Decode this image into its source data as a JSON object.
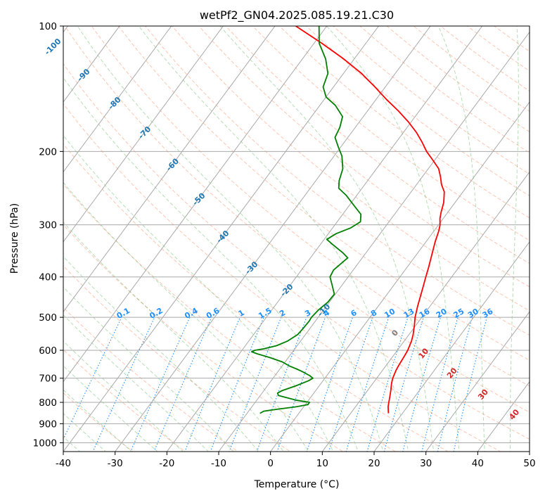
{
  "chart_data": {
    "type": "line",
    "subtype": "skew-T log-P diagram",
    "title": "wetPf2_GN04.2025.085.19.21.C30",
    "xlabel": "Temperature (°C)",
    "ylabel": "Pressure (hPa)",
    "xlim": [
      -40,
      50
    ],
    "ylim": [
      1050,
      100
    ],
    "y_scale": "log",
    "x_ticks": [
      -40,
      -30,
      -20,
      -10,
      0,
      10,
      20,
      30,
      40,
      50
    ],
    "y_ticks": [
      100,
      200,
      300,
      400,
      500,
      600,
      700,
      800,
      900,
      1000
    ],
    "grid": true,
    "series": [
      {
        "role": "temperature",
        "color": "#ff0000",
        "points": [
          [
            850,
            17.3
          ],
          [
            820,
            16.3
          ],
          [
            800,
            15.8
          ],
          [
            780,
            15.3
          ],
          [
            750,
            14.5
          ],
          [
            720,
            13.6
          ],
          [
            700,
            13.1
          ],
          [
            670,
            12.6
          ],
          [
            650,
            12.4
          ],
          [
            620,
            12.2
          ],
          [
            600,
            12.0
          ],
          [
            570,
            11.4
          ],
          [
            550,
            10.8
          ],
          [
            520,
            9.6
          ],
          [
            500,
            8.7
          ],
          [
            470,
            7.6
          ],
          [
            450,
            6.9
          ],
          [
            420,
            5.8
          ],
          [
            400,
            5.0
          ],
          [
            380,
            4.2
          ],
          [
            350,
            2.8
          ],
          [
            330,
            1.8
          ],
          [
            310,
            0.9
          ],
          [
            300,
            0.3
          ],
          [
            290,
            -0.6
          ],
          [
            280,
            -1.3
          ],
          [
            265,
            -2.2
          ],
          [
            250,
            -3.6
          ],
          [
            240,
            -5.2
          ],
          [
            230,
            -6.5
          ],
          [
            220,
            -8.0
          ],
          [
            210,
            -10.3
          ],
          [
            200,
            -12.8
          ],
          [
            190,
            -15.0
          ],
          [
            180,
            -17.5
          ],
          [
            170,
            -20.5
          ],
          [
            160,
            -24.0
          ],
          [
            150,
            -28.0
          ],
          [
            140,
            -32.0
          ],
          [
            130,
            -36.5
          ],
          [
            120,
            -42.0
          ],
          [
            110,
            -48.5
          ],
          [
            100,
            -56.0
          ]
        ]
      },
      {
        "role": "dewpoint",
        "color": "#008000",
        "points": [
          [
            850,
            -7.5
          ],
          [
            840,
            -7.1
          ],
          [
            830,
            -4.5
          ],
          [
            820,
            -1.5
          ],
          [
            810,
            0.5
          ],
          [
            800,
            0.5
          ],
          [
            790,
            -2.5
          ],
          [
            780,
            -4.5
          ],
          [
            770,
            -6.5
          ],
          [
            760,
            -7.0
          ],
          [
            750,
            -6.5
          ],
          [
            730,
            -4.5
          ],
          [
            710,
            -2.8
          ],
          [
            700,
            -2.3
          ],
          [
            690,
            -3.3
          ],
          [
            675,
            -5.3
          ],
          [
            665,
            -6.8
          ],
          [
            655,
            -8.5
          ],
          [
            640,
            -10.5
          ],
          [
            625,
            -13.5
          ],
          [
            612,
            -16.5
          ],
          [
            605,
            -17.9
          ],
          [
            600,
            -17.5
          ],
          [
            595,
            -16.0
          ],
          [
            585,
            -14.0
          ],
          [
            570,
            -12.5
          ],
          [
            550,
            -11.5
          ],
          [
            530,
            -11.3
          ],
          [
            510,
            -11.2
          ],
          [
            500,
            -11.3
          ],
          [
            480,
            -11.0
          ],
          [
            460,
            -10.3
          ],
          [
            440,
            -10.2
          ],
          [
            420,
            -11.8
          ],
          [
            400,
            -13.5
          ],
          [
            385,
            -13.8
          ],
          [
            370,
            -13.2
          ],
          [
            360,
            -12.8
          ],
          [
            350,
            -14.5
          ],
          [
            335,
            -17.5
          ],
          [
            325,
            -19.5
          ],
          [
            315,
            -18.5
          ],
          [
            305,
            -16.5
          ],
          [
            295,
            -15.5
          ],
          [
            283,
            -16.5
          ],
          [
            270,
            -19.0
          ],
          [
            255,
            -22.0
          ],
          [
            245,
            -24.5
          ],
          [
            235,
            -25.5
          ],
          [
            220,
            -26.5
          ],
          [
            205,
            -28.5
          ],
          [
            195,
            -30.5
          ],
          [
            185,
            -32.5
          ],
          [
            175,
            -33.0
          ],
          [
            165,
            -34.0
          ],
          [
            155,
            -37.0
          ],
          [
            148,
            -40.0
          ],
          [
            140,
            -42.0
          ],
          [
            130,
            -43.0
          ],
          [
            120,
            -45.5
          ],
          [
            110,
            -49.0
          ],
          [
            100,
            -51.5
          ]
        ]
      }
    ],
    "isotherm_labels": [
      -100,
      -90,
      -80,
      -70,
      -60,
      -50,
      -40,
      -30,
      -20,
      -10
    ],
    "wet_bulb_labels": [
      0,
      10,
      20,
      30,
      40
    ],
    "mixing_ratio_labels": [
      "0.1",
      "0.2",
      "0.4",
      "0.6",
      "1",
      "1.5",
      "2",
      "3",
      "4",
      "6",
      "8",
      "10",
      "13",
      "16",
      "20",
      "25",
      "30",
      "36"
    ],
    "mixing_ratio_values": [
      0.1,
      0.2,
      0.4,
      0.6,
      1,
      1.5,
      2,
      3,
      4,
      6,
      8,
      10,
      13,
      16,
      20,
      25,
      30,
      36
    ],
    "colors": {
      "isotherm_label": "#1f77b4",
      "wet_bulb_label": "#d62728",
      "mixing_ratio": "#1e90ff",
      "dry_adiabat": "#ff7f50",
      "moist_adiabat": "#2ca02c",
      "grid": "#a9a9a9",
      "zero_label": "#7f7f7f"
    }
  }
}
